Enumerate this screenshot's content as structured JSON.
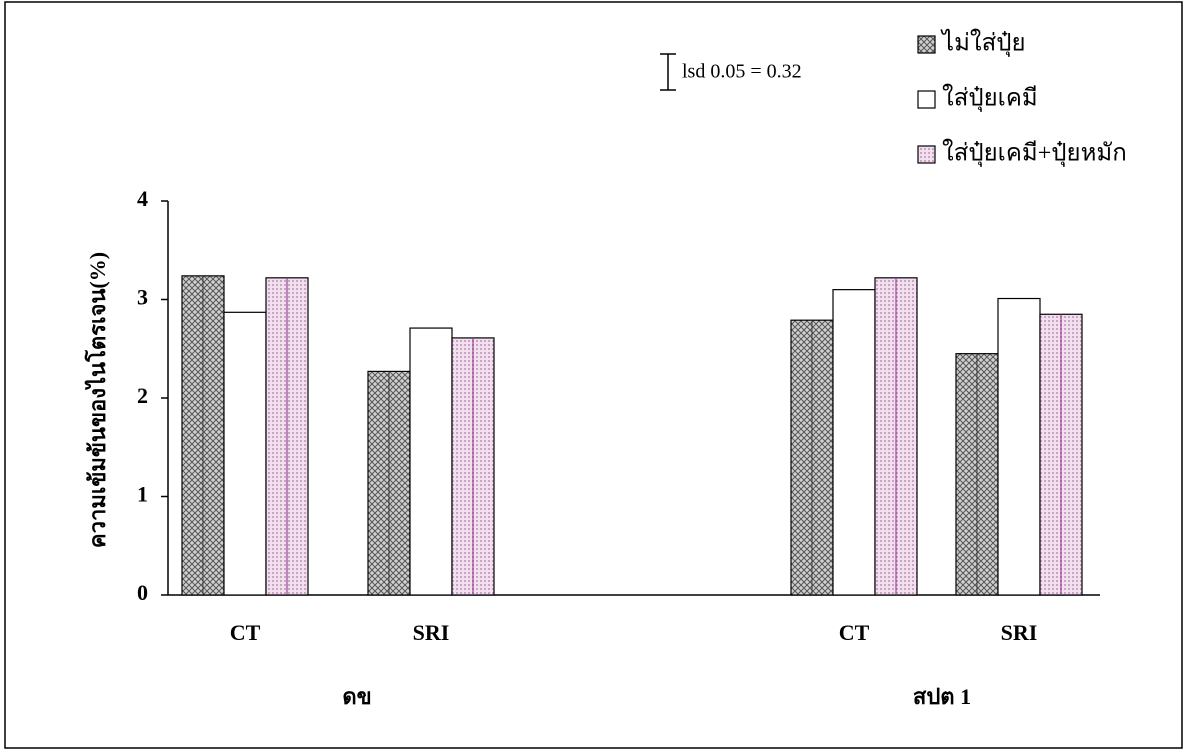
{
  "chart_data": {
    "type": "bar",
    "y_label": "ความเข้มข้นของไนโตรเจน(%)",
    "annotation": "lsd 0.05 = 0.32",
    "categories": [
      "CT",
      "SRI",
      "CT",
      "SRI"
    ],
    "groups": [
      "ดข",
      "สปต 1"
    ],
    "series": [
      {
        "name": "ไม่ใส่ปุ๋ย",
        "color": "#8f8f8f",
        "values": [
          3.24,
          2.27,
          2.79,
          2.45
        ]
      },
      {
        "name": "ใส่ปุ๋ยเคมี",
        "color": "#ffffff",
        "values": [
          2.87,
          2.71,
          3.1,
          3.01
        ]
      },
      {
        "name": "ใส่ปุ๋ยเคมี+ปุ๋ยหมัก",
        "color": "#e6c3e0",
        "values": [
          3.22,
          2.61,
          3.22,
          2.85
        ]
      }
    ],
    "ylim": [
      0,
      4
    ],
    "yticks": [
      0,
      1,
      2,
      3,
      4
    ],
    "legend": "top-right"
  }
}
